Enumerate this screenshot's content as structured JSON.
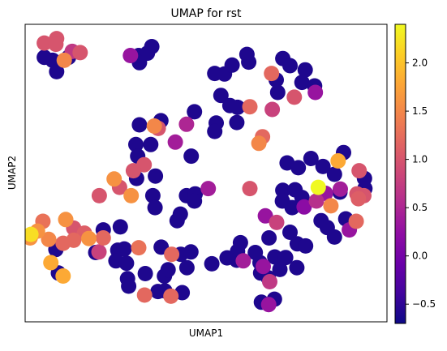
{
  "chart_data": {
    "type": "scatter",
    "title": "UMAP for rst",
    "xlabel": "UMAP1",
    "ylabel": "UMAP2",
    "xlim": [
      0,
      100
    ],
    "ylim": [
      0,
      100
    ],
    "x_ticks_shown": false,
    "y_ticks_shown": false,
    "grid": false,
    "legend": "none",
    "colorbar": {
      "colormap": "plasma",
      "orientation": "vertical",
      "placement": "right",
      "range": [
        -0.7,
        2.4
      ],
      "ticks": [
        -0.5,
        0.0,
        0.5,
        1.0,
        1.5,
        2.0
      ],
      "tick_labels": [
        "−0.5",
        "0.0",
        "0.5",
        "1.0",
        "1.5",
        "2.0"
      ]
    },
    "points": [
      {
        "x": 5.3,
        "y": 93.7,
        "c": 1.0
      },
      {
        "x": 8.7,
        "y": 95.2,
        "c": 1.0
      },
      {
        "x": 8.5,
        "y": 93.3,
        "c": 1.0
      },
      {
        "x": 13.0,
        "y": 90.9,
        "c": 0.7
      },
      {
        "x": 15.2,
        "y": 90.5,
        "c": 1.0
      },
      {
        "x": 10.8,
        "y": 87.9,
        "c": 1.5
      },
      {
        "x": 5.3,
        "y": 88.9,
        "c": -0.6
      },
      {
        "x": 7.6,
        "y": 87.9,
        "c": -0.6
      },
      {
        "x": 8.7,
        "y": 84.1,
        "c": -0.6
      },
      {
        "x": 12.0,
        "y": 88.9,
        "c": -0.6
      },
      {
        "x": 29.1,
        "y": 89.5,
        "c": 0.3
      },
      {
        "x": 31.4,
        "y": 89.5,
        "c": -0.6
      },
      {
        "x": 33.8,
        "y": 90.3,
        "c": -0.6
      },
      {
        "x": 35.0,
        "y": 92.5,
        "c": -0.6
      },
      {
        "x": 31.6,
        "y": 87.1,
        "c": -0.6
      },
      {
        "x": 52.4,
        "y": 83.5,
        "c": -0.6
      },
      {
        "x": 55.1,
        "y": 83.3,
        "c": -0.6
      },
      {
        "x": 57.2,
        "y": 86.3,
        "c": -0.6
      },
      {
        "x": 61.8,
        "y": 87.3,
        "c": -0.6
      },
      {
        "x": 61.3,
        "y": 89.9,
        "c": -0.6
      },
      {
        "x": 71.2,
        "y": 88.5,
        "c": -0.6
      },
      {
        "x": 73.2,
        "y": 86.1,
        "c": -0.6
      },
      {
        "x": 77.4,
        "y": 84.7,
        "c": -0.6
      },
      {
        "x": 68.1,
        "y": 83.5,
        "c": 1.2
      },
      {
        "x": 69.4,
        "y": 81.3,
        "c": -0.6
      },
      {
        "x": 76.5,
        "y": 80.5,
        "c": -0.6
      },
      {
        "x": 69.8,
        "y": 77.1,
        "c": -0.6
      },
      {
        "x": 74.4,
        "y": 75.5,
        "c": 1.0
      },
      {
        "x": 80.2,
        "y": 77.1,
        "c": 0.3
      },
      {
        "x": 80.0,
        "y": 79.3,
        "c": -0.6
      },
      {
        "x": 54.1,
        "y": 76.1,
        "c": -0.6
      },
      {
        "x": 56.6,
        "y": 72.7,
        "c": -0.6
      },
      {
        "x": 58.7,
        "y": 72.1,
        "c": -0.6
      },
      {
        "x": 62.1,
        "y": 72.3,
        "c": 1.2
      },
      {
        "x": 68.3,
        "y": 71.4,
        "c": 0.8
      },
      {
        "x": 58.5,
        "y": 67.0,
        "c": -0.6
      },
      {
        "x": 52.8,
        "y": 66.8,
        "c": -0.6
      },
      {
        "x": 46.8,
        "y": 70.6,
        "c": -0.6
      },
      {
        "x": 65.6,
        "y": 62.2,
        "c": 1.2
      },
      {
        "x": 64.6,
        "y": 60.0,
        "c": 1.5
      },
      {
        "x": 37.5,
        "y": 67.6,
        "c": -0.6
      },
      {
        "x": 36.8,
        "y": 65.0,
        "c": 1.0
      },
      {
        "x": 35.7,
        "y": 65.8,
        "c": 1.5
      },
      {
        "x": 44.6,
        "y": 66.4,
        "c": 0.5
      },
      {
        "x": 41.5,
        "y": 60.4,
        "c": 0.4
      },
      {
        "x": 31.6,
        "y": 66.2,
        "c": -0.6
      },
      {
        "x": 30.6,
        "y": 59.6,
        "c": -0.6
      },
      {
        "x": 34.7,
        "y": 59.6,
        "c": -0.6
      },
      {
        "x": 31.1,
        "y": 55.7,
        "c": -0.6
      },
      {
        "x": 32.9,
        "y": 52.8,
        "c": 1.0
      },
      {
        "x": 30.8,
        "y": 48.2,
        "c": -0.6
      },
      {
        "x": 29.9,
        "y": 50.8,
        "c": 1.0
      },
      {
        "x": 45.9,
        "y": 55.7,
        "c": -0.6
      },
      {
        "x": 52.4,
        "y": 64.0,
        "c": -0.6
      },
      {
        "x": 36.0,
        "y": 49.0,
        "c": -0.6
      },
      {
        "x": 24.6,
        "y": 48.0,
        "c": 1.6
      },
      {
        "x": 26.1,
        "y": 45.2,
        "c": 1.0
      },
      {
        "x": 20.5,
        "y": 42.4,
        "c": 1.0
      },
      {
        "x": 29.3,
        "y": 42.4,
        "c": 1.6
      },
      {
        "x": 35.3,
        "y": 42.4,
        "c": -0.6
      },
      {
        "x": 35.9,
        "y": 38.4,
        "c": -0.6
      },
      {
        "x": 44.6,
        "y": 42.4,
        "c": -0.6
      },
      {
        "x": 47.0,
        "y": 43.0,
        "c": -0.6
      },
      {
        "x": 46.8,
        "y": 40.6,
        "c": -0.6
      },
      {
        "x": 50.6,
        "y": 44.8,
        "c": 0.4
      },
      {
        "x": 62.1,
        "y": 44.8,
        "c": 1.0
      },
      {
        "x": 42.9,
        "y": 36.2,
        "c": -0.6
      },
      {
        "x": 42.0,
        "y": 34.0,
        "c": -0.6
      },
      {
        "x": 72.4,
        "y": 53.4,
        "c": -0.6
      },
      {
        "x": 75.5,
        "y": 51.8,
        "c": -0.6
      },
      {
        "x": 79.0,
        "y": 54.9,
        "c": -0.6
      },
      {
        "x": 82.3,
        "y": 52.2,
        "c": -0.6
      },
      {
        "x": 86.5,
        "y": 54.1,
        "c": 1.8
      },
      {
        "x": 88.0,
        "y": 56.9,
        "c": -0.6
      },
      {
        "x": 92.3,
        "y": 50.8,
        "c": 1.0
      },
      {
        "x": 93.8,
        "y": 48.2,
        "c": -0.6
      },
      {
        "x": 85.5,
        "y": 49.6,
        "c": -0.6
      },
      {
        "x": 81.0,
        "y": 45.2,
        "c": 2.4
      },
      {
        "x": 83.0,
        "y": 43.2,
        "c": 0.3
      },
      {
        "x": 87.0,
        "y": 43.6,
        "c": -0.6
      },
      {
        "x": 87.1,
        "y": 44.6,
        "c": 0.4
      },
      {
        "x": 91.7,
        "y": 43.0,
        "c": 1.0
      },
      {
        "x": 93.6,
        "y": 42.4,
        "c": 1.0
      },
      {
        "x": 93.9,
        "y": 44.8,
        "c": -0.6
      },
      {
        "x": 92.1,
        "y": 41.4,
        "c": 1.1
      },
      {
        "x": 84.5,
        "y": 39.0,
        "c": 1.5
      },
      {
        "x": 80.5,
        "y": 40.6,
        "c": 0.6
      },
      {
        "x": 76.5,
        "y": 41.8,
        "c": -0.6
      },
      {
        "x": 77.1,
        "y": 38.6,
        "c": 0.2
      },
      {
        "x": 71.2,
        "y": 44.2,
        "c": -0.6
      },
      {
        "x": 74.6,
        "y": 44.4,
        "c": -0.6
      },
      {
        "x": 73.8,
        "y": 38.4,
        "c": -0.6
      },
      {
        "x": 71.1,
        "y": 40.6,
        "c": -0.6
      },
      {
        "x": 66.4,
        "y": 35.6,
        "c": 0.3
      },
      {
        "x": 69.5,
        "y": 33.4,
        "c": 0.8
      },
      {
        "x": 67.4,
        "y": 28.2,
        "c": -0.6
      },
      {
        "x": 73.2,
        "y": 30.1,
        "c": -0.6
      },
      {
        "x": 75.2,
        "y": 26.2,
        "c": -0.6
      },
      {
        "x": 77.5,
        "y": 25.5,
        "c": -0.6
      },
      {
        "x": 81.8,
        "y": 34.0,
        "c": -0.6
      },
      {
        "x": 83.5,
        "y": 31.7,
        "c": -0.6
      },
      {
        "x": 85.5,
        "y": 28.5,
        "c": -0.6
      },
      {
        "x": 88.6,
        "y": 34.6,
        "c": -0.6
      },
      {
        "x": 89.6,
        "y": 30.9,
        "c": 0.3
      },
      {
        "x": 91.5,
        "y": 33.8,
        "c": 1.2
      },
      {
        "x": 1.4,
        "y": 28.2,
        "c": 1.6
      },
      {
        "x": 1.6,
        "y": 29.4,
        "c": 2.2
      },
      {
        "x": 3.4,
        "y": 30.5,
        "c": 1.6
      },
      {
        "x": 4.9,
        "y": 33.8,
        "c": 1.3
      },
      {
        "x": 6.5,
        "y": 27.7,
        "c": 1.5
      },
      {
        "x": 8.5,
        "y": 24.3,
        "c": -0.6
      },
      {
        "x": 10.5,
        "y": 26.4,
        "c": 1.2
      },
      {
        "x": 13.4,
        "y": 27.4,
        "c": 1.2
      },
      {
        "x": 16.4,
        "y": 29.8,
        "c": 1.1
      },
      {
        "x": 13.4,
        "y": 31.5,
        "c": 1.0
      },
      {
        "x": 11.2,
        "y": 34.4,
        "c": 1.6
      },
      {
        "x": 17.6,
        "y": 28.0,
        "c": 1.6
      },
      {
        "x": 20.4,
        "y": 23.5,
        "c": 0.8
      },
      {
        "x": 7.1,
        "y": 19.9,
        "c": 1.8
      },
      {
        "x": 9.2,
        "y": 16.4,
        "c": -0.6
      },
      {
        "x": 10.5,
        "y": 15.4,
        "c": 1.8
      },
      {
        "x": 19.5,
        "y": 23.3,
        "c": -0.6
      },
      {
        "x": 21.6,
        "y": 28.2,
        "c": 1.2
      },
      {
        "x": 21.6,
        "y": 30.9,
        "c": -0.6
      },
      {
        "x": 26.3,
        "y": 31.9,
        "c": -0.6
      },
      {
        "x": 25.6,
        "y": 24.1,
        "c": -0.6
      },
      {
        "x": 25.1,
        "y": 20.5,
        "c": -0.6
      },
      {
        "x": 28.0,
        "y": 19.7,
        "c": -0.6
      },
      {
        "x": 28.3,
        "y": 14.5,
        "c": -0.6
      },
      {
        "x": 27.4,
        "y": 24.5,
        "c": -0.6
      },
      {
        "x": 31.4,
        "y": 24.9,
        "c": 1.3
      },
      {
        "x": 33.2,
        "y": 16.2,
        "c": -0.6
      },
      {
        "x": 38.5,
        "y": 15.4,
        "c": -0.6
      },
      {
        "x": 39.5,
        "y": 17.5,
        "c": -0.6
      },
      {
        "x": 44.7,
        "y": 18.2,
        "c": -0.6
      },
      {
        "x": 37.6,
        "y": 25.1,
        "c": -0.6
      },
      {
        "x": 40.5,
        "y": 22.7,
        "c": 1.2
      },
      {
        "x": 43.0,
        "y": 22.7,
        "c": -0.6
      },
      {
        "x": 45.8,
        "y": 23.5,
        "c": -0.6
      },
      {
        "x": 51.6,
        "y": 19.5,
        "c": -0.6
      },
      {
        "x": 55.8,
        "y": 21.5,
        "c": -0.6
      },
      {
        "x": 58.7,
        "y": 23.7,
        "c": -0.6
      },
      {
        "x": 60.3,
        "y": 20.5,
        "c": 0.4
      },
      {
        "x": 58.5,
        "y": 20.7,
        "c": -0.6
      },
      {
        "x": 59.5,
        "y": 26.6,
        "c": -0.6
      },
      {
        "x": 64.9,
        "y": 19.9,
        "c": -0.6
      },
      {
        "x": 65.1,
        "y": 16.4,
        "c": -0.6
      },
      {
        "x": 67.2,
        "y": 14.8,
        "c": -0.6
      },
      {
        "x": 70.4,
        "y": 17.6,
        "c": -0.6
      },
      {
        "x": 63.6,
        "y": 23.3,
        "c": -0.6
      },
      {
        "x": 65.8,
        "y": 18.6,
        "c": 0.3
      },
      {
        "x": 67.6,
        "y": 13.5,
        "c": 0.7
      },
      {
        "x": 69.0,
        "y": 21.8,
        "c": -0.6
      },
      {
        "x": 72.0,
        "y": 21.6,
        "c": -0.6
      },
      {
        "x": 75.1,
        "y": 18.2,
        "c": -0.6
      },
      {
        "x": 65.3,
        "y": 6.6,
        "c": -0.6
      },
      {
        "x": 67.3,
        "y": 5.8,
        "c": 0.3
      },
      {
        "x": 68.9,
        "y": 7.6,
        "c": -0.6
      },
      {
        "x": 36.7,
        "y": 10.2,
        "c": -0.6
      },
      {
        "x": 38.6,
        "y": 10.4,
        "c": -0.6
      },
      {
        "x": 40.3,
        "y": 8.6,
        "c": 1.2
      },
      {
        "x": 43.4,
        "y": 9.8,
        "c": -0.6
      },
      {
        "x": 33.0,
        "y": 9.0,
        "c": 1.2
      },
      {
        "x": 28.6,
        "y": 12.0,
        "c": -0.6
      }
    ]
  }
}
